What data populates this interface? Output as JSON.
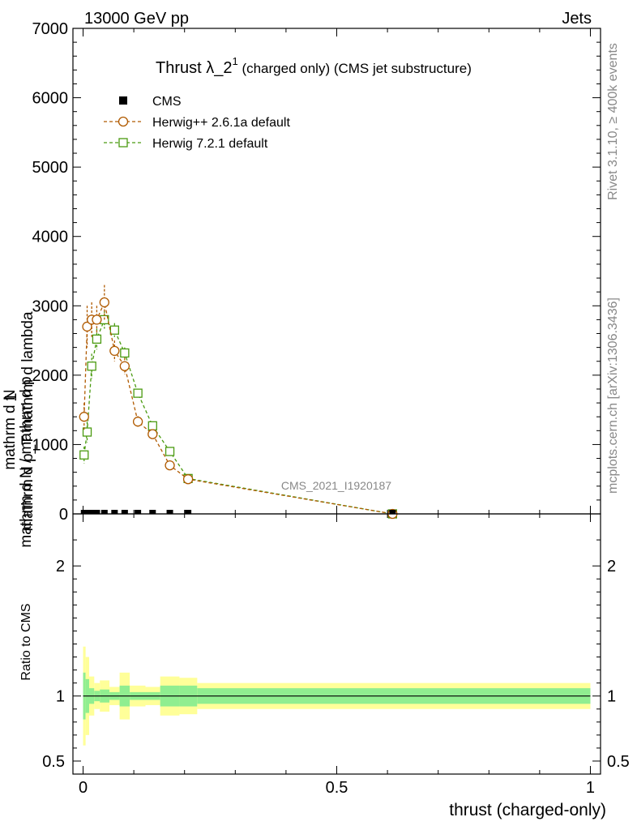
{
  "header": {
    "left": "13000 GeV pp",
    "right": "Jets"
  },
  "side": {
    "rivet": "Rivet 3.1.10, ≥ 400k events",
    "mcplots": "mcplots.cern.ch [arXiv:1306.3436]"
  },
  "watermark": "CMS_2021_I1920187",
  "chart_data": {
    "type": "line",
    "title_main": "Thrust λ_2",
    "title_sup": "1",
    "title_rest": " (charged only) (CMS jet substructure)",
    "xlabel": "thrust (charged-only)",
    "ylabel_num": "1",
    "ylabel_den1": "mathrm d N / mathrm d p",
    "ylabel_den2": "mathrm d N",
    "ylabel_main": "mathrm d p_T mathrm d lambda",
    "xlim": [
      -0.02,
      1.02
    ],
    "ylim": [
      0,
      7000
    ],
    "yticks": [
      "0",
      "1000",
      "2000",
      "3000",
      "4000",
      "5000",
      "6000",
      "7000"
    ],
    "xticks": [
      "0",
      "0.5",
      "1"
    ],
    "ratio_ylabel": "Ratio to CMS",
    "ratio_ylim": [
      0.4,
      2.4
    ],
    "ratio_yticks": [
      "0.5",
      "1",
      "2"
    ],
    "legend": {
      "cms": "CMS",
      "herwig_pp": "Herwig++ 2.6.1a default",
      "herwig7": "Herwig 7.2.1 default"
    },
    "colors": {
      "cms": "#000000",
      "herwig_pp": "#b05a00",
      "herwig7": "#4a9a10",
      "band_inner": "#90ee90",
      "band_outer": "#ffff99"
    },
    "series": [
      {
        "name": "Herwig++ 2.6.1a default",
        "x": [
          0.002,
          0.008,
          0.017,
          0.027,
          0.042,
          0.062,
          0.082,
          0.108,
          0.137,
          0.171,
          0.207,
          0.61
        ],
        "y": [
          1400,
          2700,
          2800,
          2800,
          3050,
          2350,
          2130,
          1330,
          1150,
          700,
          500,
          0
        ],
        "err": [
          200,
          300,
          250,
          200,
          250,
          150,
          120,
          80,
          70,
          40,
          30,
          5
        ]
      },
      {
        "name": "Herwig 7.2.1 default",
        "x": [
          0.002,
          0.008,
          0.017,
          0.027,
          0.042,
          0.062,
          0.082,
          0.108,
          0.137,
          0.171,
          0.207,
          0.61
        ],
        "y": [
          850,
          1180,
          2130,
          2520,
          2800,
          2650,
          2320,
          1740,
          1270,
          900,
          510,
          0
        ],
        "err": [
          120,
          150,
          180,
          150,
          130,
          100,
          80,
          60,
          50,
          40,
          30,
          5
        ]
      },
      {
        "name": "CMS",
        "x": [
          0.002,
          0.008,
          0.017,
          0.027,
          0.042,
          0.062,
          0.082,
          0.108,
          0.137,
          0.171,
          0.207,
          0.61
        ],
        "y": [
          0,
          0,
          0,
          0,
          0,
          0,
          0,
          0,
          0,
          0,
          0,
          0
        ]
      }
    ],
    "ratio_band": {
      "edges": [
        0.0,
        0.005,
        0.012,
        0.022,
        0.033,
        0.052,
        0.072,
        0.092,
        0.123,
        0.152,
        0.19,
        0.225,
        1.0
      ],
      "inner": [
        0.18,
        0.13,
        0.06,
        0.04,
        0.05,
        0.03,
        0.08,
        0.03,
        0.03,
        0.08,
        0.08,
        0.06
      ],
      "outer": [
        0.38,
        0.3,
        0.15,
        0.1,
        0.12,
        0.07,
        0.18,
        0.08,
        0.07,
        0.15,
        0.14,
        0.1
      ]
    }
  }
}
